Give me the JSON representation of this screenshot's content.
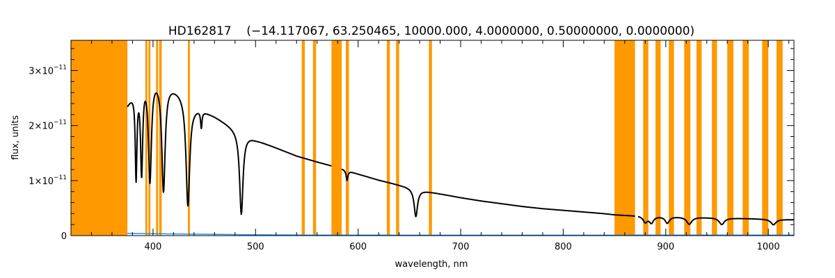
{
  "chart_data": {
    "type": "line",
    "title": "HD162817    (−14.117067, 63.250465, 10000.000, 4.0000000, 0.50000000, 0.0000000)",
    "xlabel": "wavelength, nm",
    "ylabel": "flux, units",
    "xlim": [
      320,
      1025
    ],
    "ylim": [
      0,
      3.55e-11
    ],
    "xticks": [
      {
        "value": 400,
        "label": "400"
      },
      {
        "value": 500,
        "label": "500"
      },
      {
        "value": 600,
        "label": "600"
      },
      {
        "value": 700,
        "label": "700"
      },
      {
        "value": 800,
        "label": "800"
      },
      {
        "value": 900,
        "label": "900"
      },
      {
        "value": 1000,
        "label": "1000"
      }
    ],
    "yticks": [
      {
        "value": 0,
        "mantissa": "0",
        "exponent": ""
      },
      {
        "value": 1e-11,
        "mantissa": "1×10",
        "exponent": "−11"
      },
      {
        "value": 2e-11,
        "mantissa": "2×10",
        "exponent": "−11"
      },
      {
        "value": 3e-11,
        "mantissa": "3×10",
        "exponent": "−11"
      }
    ],
    "grid": false,
    "legend": "none",
    "colors": {
      "spectrum": "#000000",
      "mask": "#ff9900",
      "error": "#1a8fff"
    },
    "masked_regions": [
      [
        320,
        375
      ],
      [
        392.5,
        394.5
      ],
      [
        395.5,
        397.5
      ],
      [
        403,
        405
      ],
      [
        406,
        408.5
      ],
      [
        434,
        436
      ],
      [
        545,
        548
      ],
      [
        556,
        559
      ],
      [
        574,
        584
      ],
      [
        588,
        591
      ],
      [
        628,
        631
      ],
      [
        637,
        640
      ],
      [
        669,
        672
      ],
      [
        850,
        870
      ],
      [
        878,
        883
      ],
      [
        890,
        895
      ],
      [
        903,
        908
      ],
      [
        918,
        924
      ],
      [
        930,
        935
      ],
      [
        945,
        950
      ],
      [
        960,
        966
      ],
      [
        975,
        981
      ],
      [
        994,
        1000
      ],
      [
        1008,
        1014
      ]
    ],
    "continuum": {
      "x": [
        375,
        390,
        400,
        410,
        420,
        430,
        440,
        460,
        480,
        500,
        520,
        540,
        560,
        580,
        600,
        620,
        640,
        660,
        680,
        700,
        720,
        740,
        760,
        780,
        800,
        820,
        840,
        850,
        860,
        880,
        900,
        920,
        940,
        960,
        980,
        1000,
        1025
      ],
      "y": [
        2.4e-11,
        2.95e-11,
        2.95e-11,
        2.85e-11,
        2.72e-11,
        2.6e-11,
        2.38e-11,
        2.18e-11,
        1.95e-11,
        1.75e-11,
        1.6e-11,
        1.45e-11,
        1.34e-11,
        1.24e-11,
        1.12e-11,
        1.01e-11,
        9.2e-12,
        8.3e-12,
        7.6e-12,
        6.9e-12,
        6.3e-12,
        5.8e-12,
        5.3e-12,
        4.9e-12,
        4.6e-12,
        4.3e-12,
        4e-12,
        3.8e-12,
        3.7e-12,
        3.6e-12,
        3.5e-12,
        3.4e-12,
        3.3e-12,
        3.2e-12,
        3.1e-12,
        3e-12,
        2.9e-12
      ]
    },
    "absorption_lines": [
      {
        "center": 383.5,
        "depth": 1.6e-11,
        "width": 1.0
      },
      {
        "center": 388.9,
        "depth": 1.7e-11,
        "width": 1.3
      },
      {
        "center": 397.0,
        "depth": 1.9e-11,
        "width": 1.8
      },
      {
        "center": 410.2,
        "depth": 2e-11,
        "width": 2.0
      },
      {
        "center": 434.0,
        "depth": 1.95e-11,
        "width": 2.2
      },
      {
        "center": 447.1,
        "depth": 3e-12,
        "width": 0.8
      },
      {
        "center": 486.1,
        "depth": 1.5e-11,
        "width": 2.0
      },
      {
        "center": 589.2,
        "depth": 1.8e-12,
        "width": 1.0
      },
      {
        "center": 656.3,
        "depth": 5e-12,
        "width": 2.0
      },
      {
        "center": 880.0,
        "depth": 1.1e-12,
        "width": 2.5
      },
      {
        "center": 886.0,
        "depth": 1.2e-12,
        "width": 2.5
      },
      {
        "center": 901.5,
        "depth": 1.2e-12,
        "width": 2.5
      },
      {
        "center": 922.9,
        "depth": 1.3e-12,
        "width": 3.0
      },
      {
        "center": 954.6,
        "depth": 1.2e-12,
        "width": 3.0
      },
      {
        "center": 1005.0,
        "depth": 1e-12,
        "width": 3.0
      }
    ],
    "gaps": [
      [
        574,
        584
      ],
      [
        870,
        873
      ]
    ],
    "error_series": {
      "x": [
        375,
        400,
        450,
        500,
        550,
        600,
        700,
        800,
        900,
        1000,
        1025
      ],
      "y": [
        4e-13,
        3.5e-13,
        2.5e-13,
        1.5e-13,
        1e-13,
        9e-14,
        8e-14,
        8e-14,
        9e-14,
        1e-13,
        1e-13
      ]
    }
  }
}
